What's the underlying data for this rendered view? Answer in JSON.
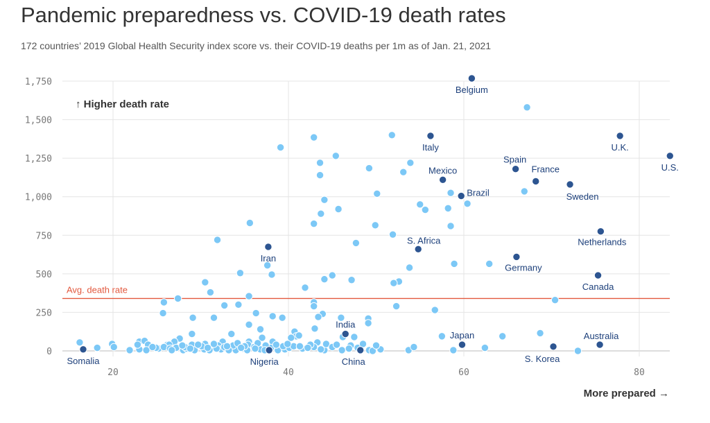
{
  "chart_data": {
    "type": "scatter",
    "title": "Pandemic preparedness vs. COVID-19 death rates",
    "subtitle": "172 countries’ 2019 Global Health Security index score vs. their COVID-19 deaths per 1m as of Jan. 21, 2021",
    "xlabel": "More prepared →",
    "ylabel": "↑ Higher death rate",
    "xlim": [
      14.5,
      84
    ],
    "ylim": [
      0,
      1750
    ],
    "x_ticks": [
      20,
      40,
      60,
      80
    ],
    "x_tick_labels": [
      "20",
      "40",
      "60",
      "80"
    ],
    "y_ticks": [
      0,
      250,
      500,
      750,
      1000,
      1250,
      1500,
      1750
    ],
    "y_tick_labels": [
      "0",
      "250",
      "500",
      "750",
      "1,000",
      "1,250",
      "1,500",
      "1,750"
    ],
    "grid": true,
    "avg_line": {
      "label": "Avg. death rate",
      "value": 340,
      "color": "#e2583e"
    },
    "colors": {
      "highlight": "#2d5591",
      "other": "#7cc8f6",
      "label": "#1c3f7a"
    },
    "highlighted": [
      {
        "name": "Belgium",
        "x": 60.9,
        "y": 1775
      },
      {
        "name": "U.K.",
        "x": 77.8,
        "y": 1395
      },
      {
        "name": "Italy",
        "x": 56.2,
        "y": 1395
      },
      {
        "name": "U.S.",
        "x": 83.5,
        "y": 1265
      },
      {
        "name": "Spain",
        "x": 65.9,
        "y": 1180
      },
      {
        "name": "Mexico",
        "x": 57.6,
        "y": 1110
      },
      {
        "name": "France",
        "x": 68.2,
        "y": 1100
      },
      {
        "name": "Sweden",
        "x": 72.1,
        "y": 1080
      },
      {
        "name": "Brazil",
        "x": 59.7,
        "y": 1005
      },
      {
        "name": "Netherlands",
        "x": 75.6,
        "y": 775
      },
      {
        "name": "Iran",
        "x": 37.7,
        "y": 675
      },
      {
        "name": "S. Africa",
        "x": 54.8,
        "y": 660
      },
      {
        "name": "Germany",
        "x": 66.0,
        "y": 610
      },
      {
        "name": "Canada",
        "x": 75.3,
        "y": 490
      },
      {
        "name": "India",
        "x": 46.5,
        "y": 110
      },
      {
        "name": "Japan",
        "x": 59.8,
        "y": 40
      },
      {
        "name": "Australia",
        "x": 75.5,
        "y": 40
      },
      {
        "name": "S. Korea",
        "x": 70.2,
        "y": 28
      },
      {
        "name": "Somalia",
        "x": 16.6,
        "y": 10
      },
      {
        "name": "Nigeria",
        "x": 37.8,
        "y": 5
      },
      {
        "name": "China",
        "x": 48.2,
        "y": 5
      }
    ],
    "others": [
      [
        67.2,
        1580
      ],
      [
        39.1,
        1320
      ],
      [
        42.9,
        1385
      ],
      [
        51.8,
        1400
      ],
      [
        45.4,
        1265
      ],
      [
        43.6,
        1220
      ],
      [
        53.9,
        1220
      ],
      [
        49.2,
        1185
      ],
      [
        53.1,
        1160
      ],
      [
        43.6,
        1140
      ],
      [
        66.9,
        1035
      ],
      [
        58.5,
        1025
      ],
      [
        50.1,
        1020
      ],
      [
        44.1,
        980
      ],
      [
        55.0,
        950
      ],
      [
        60.4,
        955
      ],
      [
        45.7,
        920
      ],
      [
        58.2,
        925
      ],
      [
        55.6,
        915
      ],
      [
        43.7,
        890
      ],
      [
        35.6,
        830
      ],
      [
        42.9,
        825
      ],
      [
        49.9,
        815
      ],
      [
        58.5,
        810
      ],
      [
        51.9,
        755
      ],
      [
        31.9,
        720
      ],
      [
        47.7,
        700
      ],
      [
        62.9,
        565
      ],
      [
        58.9,
        565
      ],
      [
        37.6,
        555
      ],
      [
        53.8,
        540
      ],
      [
        34.5,
        505
      ],
      [
        38.1,
        495
      ],
      [
        45.0,
        490
      ],
      [
        44.1,
        465
      ],
      [
        47.2,
        460
      ],
      [
        30.5,
        445
      ],
      [
        52.6,
        450
      ],
      [
        52.0,
        440
      ],
      [
        41.9,
        410
      ],
      [
        31.1,
        380
      ],
      [
        35.5,
        355
      ],
      [
        70.4,
        330
      ],
      [
        25.8,
        315
      ],
      [
        32.7,
        295
      ],
      [
        34.3,
        300
      ],
      [
        42.9,
        315
      ],
      [
        42.9,
        290
      ],
      [
        27.4,
        340
      ],
      [
        56.7,
        265
      ],
      [
        52.3,
        290
      ],
      [
        25.7,
        245
      ],
      [
        36.3,
        245
      ],
      [
        38.2,
        225
      ],
      [
        39.3,
        215
      ],
      [
        29.1,
        215
      ],
      [
        31.5,
        215
      ],
      [
        43.9,
        240
      ],
      [
        43.4,
        220
      ],
      [
        46.0,
        215
      ],
      [
        49.1,
        210
      ],
      [
        49.1,
        180
      ],
      [
        35.5,
        170
      ],
      [
        36.8,
        140
      ],
      [
        40.7,
        125
      ],
      [
        68.7,
        115
      ],
      [
        29.0,
        110
      ],
      [
        33.5,
        110
      ],
      [
        37.0,
        85
      ],
      [
        40.9,
        95
      ],
      [
        41.2,
        100
      ],
      [
        43.0,
        145
      ],
      [
        64.4,
        95
      ],
      [
        57.5,
        95
      ],
      [
        46.2,
        90
      ],
      [
        47.5,
        90
      ],
      [
        27.6,
        80
      ],
      [
        27.0,
        60
      ],
      [
        23.0,
        60
      ],
      [
        23.6,
        65
      ],
      [
        32.5,
        60
      ],
      [
        35.5,
        60
      ],
      [
        38.2,
        60
      ],
      [
        43.3,
        55
      ],
      [
        30.5,
        45
      ],
      [
        29.0,
        40
      ],
      [
        24.0,
        40
      ],
      [
        26.2,
        40
      ],
      [
        26.4,
        40
      ],
      [
        19.9,
        45
      ],
      [
        16.2,
        55
      ],
      [
        18.2,
        20
      ],
      [
        20.1,
        25
      ],
      [
        21.9,
        5
      ],
      [
        23.0,
        10
      ],
      [
        23.8,
        5
      ],
      [
        25.2,
        15
      ],
      [
        25.8,
        25
      ],
      [
        26.5,
        15
      ],
      [
        27.2,
        20
      ],
      [
        28.0,
        5
      ],
      [
        28.4,
        15
      ],
      [
        29.3,
        5
      ],
      [
        30.4,
        10
      ],
      [
        31.4,
        25
      ],
      [
        32.0,
        35
      ],
      [
        32.3,
        10
      ],
      [
        33.4,
        15
      ],
      [
        34.0,
        5
      ],
      [
        34.8,
        15
      ],
      [
        35.4,
        40
      ],
      [
        36.1,
        25
      ],
      [
        36.8,
        10
      ],
      [
        38.0,
        20
      ],
      [
        38.8,
        5
      ],
      [
        39.6,
        10
      ],
      [
        40.1,
        20
      ],
      [
        40.6,
        30
      ],
      [
        42.9,
        25
      ],
      [
        44.1,
        5
      ],
      [
        46.1,
        5
      ],
      [
        47.1,
        35
      ],
      [
        49.2,
        5
      ],
      [
        49.6,
        0
      ],
      [
        53.7,
        5
      ],
      [
        58.8,
        5
      ],
      [
        62.4,
        20
      ],
      [
        73.0,
        0
      ],
      [
        30.1,
        30
      ],
      [
        31.8,
        15
      ],
      [
        33.7,
        35
      ],
      [
        35.3,
        5
      ],
      [
        22.8,
        40
      ],
      [
        24.9,
        20
      ],
      [
        28.2,
        25
      ],
      [
        29.7,
        40
      ],
      [
        31.0,
        5
      ],
      [
        32.7,
        25
      ],
      [
        34.2,
        50
      ],
      [
        35.0,
        30
      ],
      [
        36.5,
        50
      ],
      [
        37.4,
        35
      ],
      [
        39.4,
        30
      ],
      [
        40.3,
        85
      ],
      [
        41.6,
        15
      ],
      [
        42.5,
        40
      ],
      [
        44.3,
        45
      ],
      [
        45.0,
        25
      ],
      [
        47.9,
        20
      ],
      [
        48.5,
        45
      ],
      [
        50.5,
        10
      ],
      [
        26.7,
        5
      ],
      [
        27.9,
        35
      ],
      [
        30.8,
        20
      ],
      [
        33.2,
        5
      ],
      [
        36.2,
        15
      ],
      [
        37.3,
        5
      ],
      [
        39.9,
        45
      ],
      [
        41.3,
        30
      ],
      [
        43.7,
        10
      ],
      [
        45.5,
        40
      ],
      [
        46.9,
        15
      ],
      [
        50.0,
        35
      ],
      [
        54.3,
        25
      ],
      [
        24.5,
        25
      ],
      [
        28.8,
        15
      ],
      [
        31.5,
        45
      ],
      [
        34.6,
        20
      ],
      [
        38.6,
        40
      ],
      [
        42.2,
        20
      ],
      [
        33.0,
        30
      ]
    ]
  }
}
